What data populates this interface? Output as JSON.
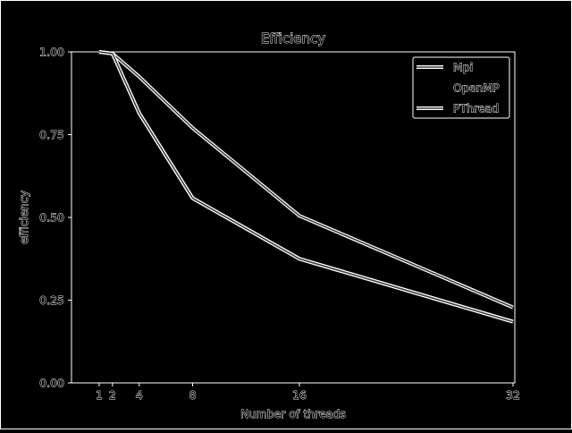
{
  "chart_data": {
    "type": "line",
    "title": "Efficiency",
    "xlabel": "Number of threads",
    "ylabel": "efficiency",
    "x": [
      1,
      2,
      4,
      8,
      16,
      32
    ],
    "x_ticks": [
      "1",
      "2",
      "4",
      "8",
      "16",
      "32"
    ],
    "xlim": [
      0,
      32
    ],
    "ylim": [
      0,
      1
    ],
    "y_ticks": [
      "0.00",
      "0.25",
      "0.50",
      "0.75",
      "1.00"
    ],
    "series": [
      {
        "name": "Mpi",
        "values": [
          1.0,
          0.995,
          0.925,
          0.77,
          0.505,
          0.228
        ]
      },
      {
        "name": "OpenMP",
        "values": [
          1.0,
          0.995,
          0.815,
          0.558,
          0.375,
          0.185
        ]
      },
      {
        "name": "PThread",
        "values": [
          1.0,
          0.995,
          0.815,
          0.558,
          0.375,
          0.185
        ]
      }
    ],
    "legend_position": "top-right",
    "grid": false,
    "colors": {
      "background": "#000000",
      "foreground": "#ffffff",
      "line": "#cccccc"
    }
  }
}
